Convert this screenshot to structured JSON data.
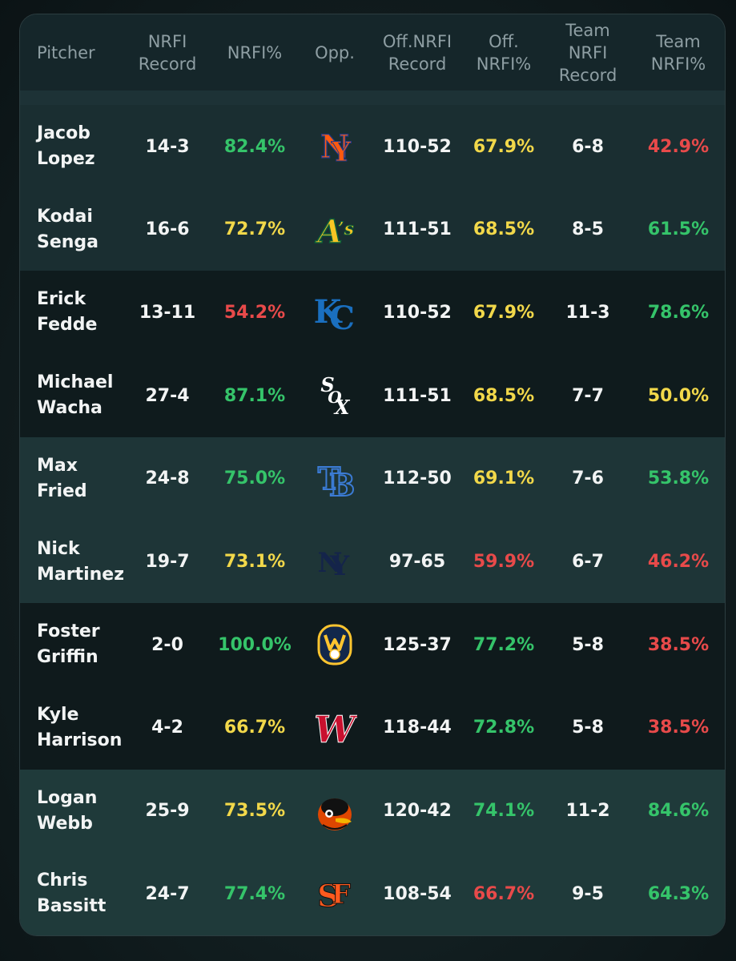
{
  "headers": {
    "pitcher": "Pitcher",
    "nrfi_record_1": "NRFI",
    "nrfi_record_2": "Record",
    "nrfi_pct": "NRFI%",
    "opp": "Opp.",
    "off_record_1": "Off.NRFI",
    "off_record_2": "Record",
    "off_pct_1": "Off.",
    "off_pct_2": "NRFI%",
    "team_record_1": "Team",
    "team_record_2": "NRFI",
    "team_record_3": "Record",
    "team_pct_1": "Team",
    "team_pct_2": "NRFI%"
  },
  "colors": {
    "green": "#35c46a",
    "yellow": "#f2d84a",
    "red": "#e84a4a"
  },
  "rows": [
    {
      "first": "Jacob",
      "last": "Lopez",
      "nrfi_record": "14-3",
      "nrfi_pct": "82.4%",
      "nrfi_color": "green",
      "opp_logo": "mets-logo-icon",
      "off_record": "110-52",
      "off_pct": "67.9%",
      "off_color": "yellow",
      "team_record": "6-8",
      "team_pct": "42.9%",
      "team_color": "red"
    },
    {
      "first": "Kodai",
      "last": "Senga",
      "nrfi_record": "16-6",
      "nrfi_pct": "72.7%",
      "nrfi_color": "yellow",
      "opp_logo": "athletics-logo-icon",
      "off_record": "111-51",
      "off_pct": "68.5%",
      "off_color": "yellow",
      "team_record": "8-5",
      "team_pct": "61.5%",
      "team_color": "green"
    },
    {
      "first": "Erick",
      "last": "Fedde",
      "nrfi_record": "13-11",
      "nrfi_pct": "54.2%",
      "nrfi_color": "red",
      "opp_logo": "royals-logo-icon",
      "off_record": "110-52",
      "off_pct": "67.9%",
      "off_color": "yellow",
      "team_record": "11-3",
      "team_pct": "78.6%",
      "team_color": "green"
    },
    {
      "first": "Michael",
      "last": "Wacha",
      "nrfi_record": "27-4",
      "nrfi_pct": "87.1%",
      "nrfi_color": "green",
      "opp_logo": "white-sox-logo-icon",
      "off_record": "111-51",
      "off_pct": "68.5%",
      "off_color": "yellow",
      "team_record": "7-7",
      "team_pct": "50.0%",
      "team_color": "yellow"
    },
    {
      "first": "Max",
      "last": "Fried",
      "nrfi_record": "24-8",
      "nrfi_pct": "75.0%",
      "nrfi_color": "green",
      "opp_logo": "rays-logo-icon",
      "off_record": "112-50",
      "off_pct": "69.1%",
      "off_color": "yellow",
      "team_record": "7-6",
      "team_pct": "53.8%",
      "team_color": "green"
    },
    {
      "first": "Nick",
      "last": "Martinez",
      "nrfi_record": "19-7",
      "nrfi_pct": "73.1%",
      "nrfi_color": "yellow",
      "opp_logo": "yankees-logo-icon",
      "off_record": "97-65",
      "off_pct": "59.9%",
      "off_color": "red",
      "team_record": "6-7",
      "team_pct": "46.2%",
      "team_color": "red"
    },
    {
      "first": "Foster",
      "last": "Griffin",
      "nrfi_record": "2-0",
      "nrfi_pct": "100.0%",
      "nrfi_color": "green",
      "opp_logo": "brewers-logo-icon",
      "off_record": "125-37",
      "off_pct": "77.2%",
      "off_color": "green",
      "team_record": "5-8",
      "team_pct": "38.5%",
      "team_color": "red"
    },
    {
      "first": "Kyle",
      "last": "Harrison",
      "nrfi_record": "4-2",
      "nrfi_pct": "66.7%",
      "nrfi_color": "yellow",
      "opp_logo": "nationals-logo-icon",
      "off_record": "118-44",
      "off_pct": "72.8%",
      "off_color": "green",
      "team_record": "5-8",
      "team_pct": "38.5%",
      "team_color": "red"
    },
    {
      "first": "Logan",
      "last": "Webb",
      "nrfi_record": "25-9",
      "nrfi_pct": "73.5%",
      "nrfi_color": "yellow",
      "opp_logo": "orioles-logo-icon",
      "off_record": "120-42",
      "off_pct": "74.1%",
      "off_color": "green",
      "team_record": "11-2",
      "team_pct": "84.6%",
      "team_color": "green"
    },
    {
      "first": "Chris",
      "last": "Bassitt",
      "nrfi_record": "24-7",
      "nrfi_pct": "77.4%",
      "nrfi_color": "green",
      "opp_logo": "giants-logo-icon",
      "off_record": "108-54",
      "off_pct": "66.7%",
      "off_color": "red",
      "team_record": "9-5",
      "team_pct": "64.3%",
      "team_color": "green"
    }
  ]
}
